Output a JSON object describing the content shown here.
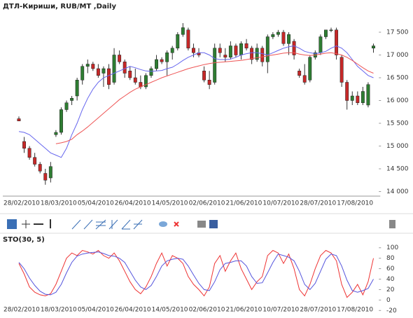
{
  "chart_data": [
    {
      "type": "candlestick",
      "title": "ДТЛ-Кириши,  RUB/MT ,Daily",
      "categories": [
        "28/02/2010",
        null,
        null,
        null,
        null,
        null,
        null,
        "18/03/2010",
        null,
        null,
        null,
        null,
        null,
        null,
        "05/04/2010",
        null,
        null,
        null,
        null,
        null,
        null,
        "26/04/2010",
        null,
        null,
        null,
        null,
        null,
        null,
        "14/05/2010",
        null,
        null,
        null,
        null,
        null,
        null,
        "02/06/2010",
        null,
        null,
        null,
        null,
        null,
        null,
        "21/06/2010",
        null,
        null,
        null,
        null,
        null,
        null,
        "10/07/2010",
        null,
        null,
        null,
        null,
        null,
        null,
        "28/07/2010",
        null,
        null,
        null,
        null,
        null,
        null,
        "17/08/2010",
        null,
        null,
        null,
        null
      ],
      "open": [
        15600,
        15100,
        14950,
        14750,
        14600,
        14400,
        14300,
        15250,
        15300,
        15800,
        16000,
        16100,
        16450,
        16750,
        16800,
        16700,
        16600,
        16700,
        16400,
        17000,
        16850,
        16650,
        16500,
        16400,
        16300,
        16550,
        16700,
        16900,
        16850,
        17050,
        17150,
        17450,
        17550,
        17150,
        17050,
        16650,
        16450,
        16400,
        17150,
        17000,
        16950,
        17200,
        17000,
        17250,
        17150,
        16900,
        17150,
        16850,
        17400,
        17450,
        17500,
        17250,
        17300,
        16650,
        16550,
        16450,
        16950,
        17050,
        17400,
        17550,
        17550,
        16950,
        16400,
        16000,
        16100,
        15950,
        15900,
        17150
      ],
      "high": [
        15650,
        15200,
        15000,
        14850,
        14650,
        14500,
        14650,
        15350,
        15850,
        16000,
        16100,
        16500,
        16800,
        16900,
        16850,
        16800,
        16750,
        16800,
        17150,
        17100,
        16900,
        16750,
        16700,
        16550,
        16600,
        16750,
        17000,
        16950,
        17100,
        17200,
        17500,
        17700,
        17600,
        17250,
        17150,
        16750,
        16650,
        17250,
        17250,
        17150,
        17300,
        17250,
        17300,
        17350,
        17200,
        17250,
        17200,
        17450,
        17500,
        17550,
        17550,
        17500,
        17350,
        16700,
        16800,
        17000,
        17100,
        17450,
        17550,
        17600,
        17600,
        17000,
        16450,
        16200,
        16200,
        16300,
        16400,
        17250
      ],
      "low": [
        15550,
        14850,
        14700,
        14550,
        14400,
        14150,
        14200,
        15200,
        15250,
        15750,
        15900,
        16000,
        16350,
        16600,
        16650,
        16500,
        16300,
        16250,
        16350,
        16800,
        16500,
        16450,
        16350,
        16250,
        16250,
        16500,
        16650,
        16800,
        16550,
        16900,
        17100,
        17400,
        17100,
        16950,
        16950,
        16400,
        16250,
        16350,
        16950,
        16850,
        16900,
        16950,
        16900,
        17100,
        16800,
        16850,
        16750,
        16600,
        17350,
        17400,
        17200,
        17000,
        16900,
        16500,
        16350,
        16400,
        16900,
        17000,
        17350,
        17500,
        16900,
        16300,
        15800,
        15900,
        15900,
        15900,
        15850,
        17050
      ],
      "close": [
        15550,
        14950,
        14750,
        14600,
        14450,
        14250,
        14550,
        15300,
        15800,
        15950,
        16050,
        16450,
        16750,
        16800,
        16700,
        16550,
        16700,
        16350,
        17000,
        16850,
        16600,
        16500,
        16400,
        16300,
        16550,
        16700,
        16900,
        16850,
        17050,
        17150,
        17450,
        17600,
        17150,
        17050,
        17000,
        16450,
        16350,
        17150,
        17050,
        16950,
        17200,
        17000,
        17250,
        17150,
        16900,
        17150,
        16850,
        17400,
        17450,
        17500,
        17250,
        17450,
        17000,
        16550,
        16400,
        16950,
        17050,
        17400,
        17550,
        17550,
        17000,
        16400,
        16000,
        16100,
        15950,
        16200,
        16350,
        17200
      ],
      "up_color": "#2e7d32",
      "down_color": "#c62828",
      "series": [
        {
          "color": "#6666ee",
          "values": [
            15320,
            15300,
            15250,
            15150,
            15050,
            14950,
            14850,
            14800,
            14750,
            14950,
            15250,
            15500,
            15800,
            16050,
            16250,
            16400,
            16500,
            16550,
            16600,
            16650,
            16700,
            16750,
            16720,
            16680,
            16650,
            16640,
            16650,
            16660,
            16700,
            16730,
            16800,
            16880,
            16950,
            17000,
            17050,
            17050,
            17000,
            16920,
            16900,
            16900,
            16910,
            16950,
            17000,
            17030,
            17050,
            17050,
            17030,
            17000,
            17050,
            17100,
            17150,
            17180,
            17200,
            17150,
            17080,
            17050,
            17030,
            17050,
            17080,
            17150,
            17200,
            17150,
            17050,
            16900,
            16750,
            16650,
            16550,
            16500
          ]
        },
        {
          "color": "#ee5555",
          "values": [
            null,
            null,
            null,
            null,
            null,
            null,
            null,
            15050,
            15070,
            15100,
            15150,
            15250,
            15330,
            15420,
            15520,
            15620,
            15720,
            15820,
            15920,
            16020,
            16100,
            16180,
            16250,
            16300,
            16350,
            16400,
            16450,
            16500,
            16540,
            16580,
            16620,
            16660,
            16700,
            16730,
            16760,
            16790,
            16810,
            16830,
            16840,
            16850,
            16860,
            16870,
            16880,
            16900,
            16920,
            16940,
            16960,
            16980,
            17000,
            17020,
            17040,
            17050,
            17050,
            17020,
            17000,
            16990,
            17000,
            17020,
            17040,
            17050,
            17030,
            17000,
            16950,
            16880,
            16800,
            16720,
            16650,
            16600
          ]
        }
      ],
      "ylim": [
        13900,
        17900
      ],
      "yticks": [
        {
          "value": 14000,
          "label": "14 000"
        },
        {
          "value": 14500,
          "label": "14 500"
        },
        {
          "value": 15000,
          "label": "15 000"
        },
        {
          "value": 15500,
          "label": "15 500"
        },
        {
          "value": 16000,
          "label": "16 000"
        },
        {
          "value": 16500,
          "label": "16 500"
        },
        {
          "value": 17000,
          "label": "17 000"
        },
        {
          "value": 17500,
          "label": "17 500"
        }
      ],
      "grid": false
    },
    {
      "type": "line",
      "title": "STO(30, 5)",
      "categories": [
        "28/02/2010",
        null,
        null,
        null,
        null,
        null,
        null,
        "18/03/2010",
        null,
        null,
        null,
        null,
        null,
        null,
        "05/04/2010",
        null,
        null,
        null,
        null,
        null,
        null,
        "26/04/2010",
        null,
        null,
        null,
        null,
        null,
        null,
        "14/05/2010",
        null,
        null,
        null,
        null,
        null,
        null,
        "02/06/2010",
        null,
        null,
        null,
        null,
        null,
        null,
        "21/06/2010",
        null,
        null,
        null,
        null,
        null,
        null,
        "10/07/2010",
        null,
        null,
        null,
        null,
        null,
        null,
        "28/07/2010",
        null,
        null,
        null,
        null,
        null,
        null,
        "17/08/2010",
        null,
        null,
        null,
        null
      ],
      "series": [
        {
          "color": "#ee3333",
          "values": [
            70,
            50,
            25,
            15,
            10,
            8,
            12,
            30,
            55,
            80,
            90,
            85,
            95,
            92,
            88,
            95,
            85,
            80,
            90,
            75,
            55,
            35,
            20,
            12,
            25,
            45,
            70,
            90,
            65,
            85,
            80,
            70,
            45,
            30,
            20,
            8,
            25,
            70,
            85,
            55,
            75,
            90,
            60,
            40,
            20,
            35,
            45,
            85,
            95,
            90,
            70,
            88,
            60,
            20,
            8,
            30,
            60,
            85,
            95,
            90,
            75,
            30,
            5,
            15,
            30,
            10,
            35,
            80
          ]
        },
        {
          "color": "#5555dd",
          "values": [
            72,
            60,
            42,
            28,
            17,
            11,
            10,
            15,
            30,
            52,
            72,
            84,
            88,
            90,
            91,
            92,
            89,
            85,
            84,
            80,
            72,
            55,
            38,
            25,
            20,
            28,
            45,
            65,
            75,
            78,
            80,
            78,
            65,
            48,
            32,
            20,
            18,
            35,
            58,
            70,
            72,
            75,
            75,
            65,
            45,
            32,
            33,
            52,
            72,
            88,
            85,
            82,
            75,
            55,
            30,
            20,
            32,
            55,
            78,
            88,
            85,
            65,
            38,
            18,
            15,
            18,
            22,
            40
          ]
        }
      ],
      "ylim": [
        -25,
        105
      ],
      "yticks": [
        -20,
        0,
        20,
        40,
        60,
        80,
        100
      ],
      "grid": false
    }
  ]
}
